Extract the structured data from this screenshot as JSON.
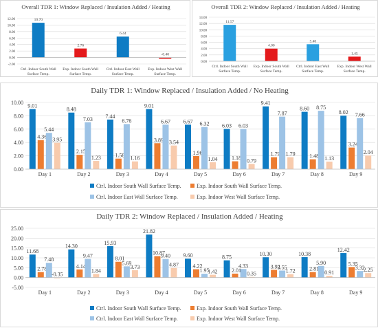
{
  "colors": {
    "ctrl_south": "#0e7cc4",
    "exp_south": "#ed7d31",
    "ctrl_east": "#9dc3e6",
    "exp_west": "#f8cbad",
    "exp_red": "#e41a1c",
    "ctrl_light_blue": "#2aa0e0",
    "grid": "#d9d9d9"
  },
  "chart_data": [
    {
      "type": "bar",
      "title": "Overall TDR 1: Window Replaced / Insulation Added / Heating",
      "categories": [
        "Ctrl. Indoor South Wall Surface Temp.",
        "Exp. Indoor South Wall Surface Temp.",
        "Ctrl. Indoor East Wall Surface Temp.",
        "Exp. Indoor West Wall Surface Temp."
      ],
      "category_lines": [
        [
          "Ctrl. Indoor South Wall",
          "Surface Temp."
        ],
        [
          "Exp. Indoor South Wall",
          "Surface Temp."
        ],
        [
          "Ctrl. Indoor East Wall",
          "Surface Temp."
        ],
        [
          "Exp. Indoor West Wall",
          "Surface Temp."
        ]
      ],
      "values": [
        10.7,
        2.76,
        6.44,
        -0.4
      ],
      "value_labels": [
        "10.70",
        "2.76",
        "6.44",
        "-0.40"
      ],
      "bar_colors": [
        "#0e7cc4",
        "#e41a1c",
        "#0e7cc4",
        "#e41a1c"
      ],
      "ylim": [
        -2,
        12
      ],
      "yticks": [
        -2,
        0,
        2,
        4,
        6,
        8,
        10,
        12
      ],
      "ytick_labels": [
        "-2.00",
        "0.00",
        "2.00",
        "4.00",
        "6.00",
        "8.00",
        "10.00",
        "12.00"
      ],
      "grid": true
    },
    {
      "type": "bar",
      "title": "Overall TDR 2: Window Replaced / Insulation Added / Heating",
      "categories": [
        "Ctrl. Indoor South Wall Surface Temp.",
        "Exp. Indoor South Wall Surface Temp.",
        "Ctrl. Indoor East Wall Surface Temp.",
        "Exp. Indoor West Wall Surface Temp."
      ],
      "category_lines": [
        [
          "Ctrl. Indoor South Wall",
          "Surface Temp."
        ],
        [
          "Exp. Indoor South Wall",
          "Surface Temp."
        ],
        [
          "Ctrl. Indoor East Wall",
          "Surface Temp."
        ],
        [
          "Exp. Indoor West Wall",
          "Surface Temp."
        ]
      ],
      "values": [
        11.57,
        4.0,
        5.4,
        1.45
      ],
      "value_labels": [
        "11.57",
        "4.00",
        "5.40",
        "1.45"
      ],
      "bar_colors": [
        "#2aa0e0",
        "#e41a1c",
        "#2aa0e0",
        "#e41a1c"
      ],
      "ylim": [
        0,
        14
      ],
      "yticks": [
        0,
        2,
        4,
        6,
        8,
        10,
        12,
        14
      ],
      "ytick_labels": [
        "0.00",
        "2.00",
        "4.00",
        "6.00",
        "8.00",
        "10.00",
        "12.00",
        "14.00"
      ],
      "grid": true
    },
    {
      "type": "bar",
      "title": "Daily TDR 1: Window Replaced / Insulation Added / No Heating",
      "categories": [
        "Day 1",
        "Day 2",
        "Day 3",
        "Day 4",
        "Day 5",
        "Day 6",
        "Day 7",
        "Day 8",
        "Day 9"
      ],
      "series": [
        {
          "name": "Ctrl. Indoor South Wall Surface Temp.",
          "values": [
            9.01,
            8.48,
            7.44,
            9.01,
            6.67,
            6.03,
            9.41,
            8.6,
            8.02
          ],
          "labels": [
            "9.01",
            "8.48",
            "7.44",
            "9.01",
            "6.67",
            "6.03",
            "9.41",
            "8.60",
            "8.02"
          ]
        },
        {
          "name": "Exp. Indoor South Wall Surface Temp.",
          "values": [
            4.36,
            2.15,
            1.58,
            3.89,
            1.96,
            1.18,
            1.79,
            1.48,
            3.24
          ],
          "labels": [
            "4.36",
            "2.15",
            "1.58",
            "3.89",
            "1.96",
            "1.18",
            "1.79",
            "1.48",
            "3.24"
          ]
        },
        {
          "name": "Ctrl. Indoor East Wall Surface Temp.",
          "values": [
            5.44,
            7.03,
            6.76,
            6.67,
            6.32,
            6.03,
            7.87,
            8.75,
            7.66
          ],
          "labels": [
            "5.44",
            "7.03",
            "6.76",
            "6.67",
            "6.32",
            "6.03",
            "7.87",
            "8.75",
            "7.66"
          ]
        },
        {
          "name": "Exp. Indoor West Wall Surface Temp.",
          "values": [
            3.95,
            1.23,
            1.16,
            3.54,
            1.04,
            0.79,
            1.79,
            1.13,
            2.04
          ],
          "labels": [
            "3.95",
            "1.23",
            "1.16",
            "3.54",
            "1.04",
            "0.79",
            "1.79",
            "1.13",
            "2.04"
          ]
        }
      ],
      "ylim": [
        0,
        10
      ],
      "yticks": [
        0,
        2,
        4,
        6,
        8,
        10
      ],
      "ytick_labels": [
        "0.00",
        "2.00",
        "4.00",
        "6.00",
        "8.00",
        "10.00"
      ],
      "legend": [
        "Ctrl. Indoor South Wall Surface Temp.",
        "Exp. Indoor South Wall Surface Temp.",
        "Ctrl. Indoor East Wall Surface Temp.",
        "Exp. Indoor West Wall Surface Temp."
      ],
      "legend_position": "bottom",
      "grid": true
    },
    {
      "type": "bar",
      "title": "Daily TDR 2: Window Replaced / Insulation Added / Heating",
      "categories": [
        "Day 1",
        "Day 2",
        "Day 3",
        "Day 4",
        "Day 5",
        "Day 6",
        "Day 7",
        "Day 8",
        "Day 9"
      ],
      "series": [
        {
          "name": "Ctrl. Indoor South Wall Surface Temp.",
          "values": [
            11.68,
            14.3,
            15.93,
            21.82,
            9.6,
            8.75,
            10.3,
            10.38,
            12.42
          ],
          "labels": [
            "11.68",
            "14.30",
            "15.93",
            "21.82",
            "9.60",
            "8.75",
            "10.30",
            "10.38",
            "12.42"
          ]
        },
        {
          "name": "Exp. Indoor South Wall Surface Temp.",
          "values": [
            2.78,
            4.14,
            8.01,
            10.87,
            4.22,
            2.01,
            3.92,
            2.81,
            5.35
          ],
          "labels": [
            "2.78",
            "4.14",
            "8.01",
            "10.87",
            "4.22",
            "2.01",
            "3.92",
            "2.81",
            "5.35"
          ]
        },
        {
          "name": "Ctrl. Indoor East Wall Surface Temp.",
          "values": [
            7.48,
            9.47,
            5.69,
            9.4,
            1.95,
            4.33,
            3.55,
            5.9,
            3.32
          ],
          "labels": [
            "7.48",
            "9.47",
            "5.69",
            "9.40",
            "1.95",
            "4.33",
            "3.55",
            "5.90",
            "3.32"
          ]
        },
        {
          "name": "Exp. Indoor West Wall Surface Temp.",
          "values": [
            -0.35,
            1.84,
            3.73,
            4.87,
            1.42,
            0.35,
            1.72,
            0.91,
            2.25
          ],
          "labels": [
            "-0.35",
            "1.84",
            "3.73",
            "4.87",
            "1.42",
            "0.35",
            "1.72",
            "0.91",
            "2.25"
          ]
        }
      ],
      "ylim": [
        -5,
        25
      ],
      "yticks": [
        -5,
        0,
        5,
        10,
        15,
        20,
        25
      ],
      "ytick_labels": [
        "-5.00",
        "0.00",
        "5.00",
        "10.00",
        "15.00",
        "20.00",
        "25.00"
      ],
      "legend": [
        "Ctrl. Indoor South Wall Surface Temp.",
        "Exp. Indoor South Wall Surface Temp.",
        "Ctrl. Indoor East Wall Surface Temp.",
        "Exp. Indoor West Wall Surface Temp."
      ],
      "legend_position": "bottom",
      "grid": true
    }
  ]
}
